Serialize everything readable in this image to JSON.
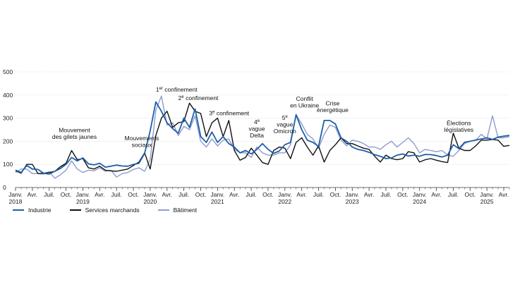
{
  "chart_data": {
    "type": "line",
    "ylim": [
      0,
      500
    ],
    "yticks": [
      0,
      100,
      200,
      300,
      400,
      500
    ],
    "x_start_index": 0,
    "x_end_index": 88,
    "x_ticks": [
      {
        "i": 0,
        "label": "Janv.",
        "year": "2018"
      },
      {
        "i": 3,
        "label": "Avr."
      },
      {
        "i": 6,
        "label": "Juil."
      },
      {
        "i": 9,
        "label": "Oct."
      },
      {
        "i": 12,
        "label": "Janv.",
        "year": "2019"
      },
      {
        "i": 15,
        "label": "Avr."
      },
      {
        "i": 18,
        "label": "Juil."
      },
      {
        "i": 21,
        "label": "Oct."
      },
      {
        "i": 24,
        "label": "Janv.",
        "year": "2020"
      },
      {
        "i": 27,
        "label": "Avr."
      },
      {
        "i": 30,
        "label": "Juil."
      },
      {
        "i": 33,
        "label": "Oct."
      },
      {
        "i": 36,
        "label": "Janv.",
        "year": "2021"
      },
      {
        "i": 39,
        "label": "Avr."
      },
      {
        "i": 42,
        "label": "Juil."
      },
      {
        "i": 45,
        "label": "Oct."
      },
      {
        "i": 48,
        "label": "Janv.",
        "year": "2022"
      },
      {
        "i": 51,
        "label": "Avr."
      },
      {
        "i": 54,
        "label": "Juil."
      },
      {
        "i": 57,
        "label": "Oct."
      },
      {
        "i": 60,
        "label": "Janv.",
        "year": "2023"
      },
      {
        "i": 63,
        "label": "Avr."
      },
      {
        "i": 66,
        "label": "Juil."
      },
      {
        "i": 69,
        "label": "Oct."
      },
      {
        "i": 72,
        "label": "Janv.",
        "year": "2024"
      },
      {
        "i": 75,
        "label": "Avr."
      },
      {
        "i": 78,
        "label": "Juil."
      },
      {
        "i": 81,
        "label": "Oct."
      },
      {
        "i": 84,
        "label": "Janv.",
        "year": "2025"
      },
      {
        "i": 87,
        "label": "Avr."
      }
    ],
    "series": [
      {
        "name": "Industrie",
        "color": "#1f5fa8",
        "width": 1.8,
        "values": [
          75,
          65,
          95,
          80,
          78,
          62,
          58,
          70,
          82,
          100,
          130,
          115,
          128,
          102,
          98,
          105,
          88,
          92,
          97,
          93,
          92,
          100,
          105,
          148,
          245,
          370,
          330,
          280,
          255,
          235,
          300,
          260,
          340,
          220,
          195,
          240,
          195,
          220,
          190,
          175,
          150,
          160,
          145,
          165,
          190,
          165,
          148,
          158,
          185,
          195,
          315,
          250,
          205,
          195,
          178,
          290,
          290,
          275,
          215,
          200,
          175,
          165,
          160,
          152,
          142,
          135,
          125,
          128,
          140,
          145,
          136,
          140,
          135,
          143,
          142,
          138,
          132,
          140,
          185,
          168,
          195,
          200,
          205,
          210,
          215,
          208,
          218,
          222,
          225
        ]
      },
      {
        "name": "Services marchands",
        "color": "#111111",
        "width": 1.4,
        "values": [
          72,
          62,
          100,
          100,
          60,
          62,
          65,
          70,
          90,
          105,
          160,
          120,
          125,
          85,
          80,
          92,
          75,
          72,
          70,
          75,
          80,
          95,
          110,
          150,
          80,
          225,
          300,
          330,
          260,
          280,
          285,
          365,
          330,
          320,
          220,
          280,
          300,
          220,
          290,
          160,
          118,
          130,
          170,
          140,
          108,
          100,
          160,
          175,
          170,
          125,
          195,
          215,
          175,
          140,
          180,
          110,
          160,
          185,
          215,
          190,
          190,
          180,
          170,
          165,
          135,
          110,
          140,
          125,
          120,
          125,
          155,
          150,
          110,
          120,
          125,
          118,
          112,
          108,
          235,
          170,
          160,
          160,
          180,
          205,
          205,
          208,
          205,
          178,
          182
        ]
      },
      {
        "name": "Bâtiment",
        "color": "#8c9ccf",
        "width": 1.4,
        "values": [
          65,
          80,
          80,
          60,
          60,
          58,
          68,
          40,
          55,
          75,
          115,
          80,
          65,
          75,
          72,
          85,
          70,
          75,
          45,
          60,
          65,
          78,
          85,
          70,
          120,
          335,
          395,
          270,
          280,
          225,
          265,
          250,
          310,
          200,
          175,
          210,
          180,
          205,
          210,
          165,
          150,
          150,
          130,
          175,
          150,
          140,
          140,
          150,
          150,
          185,
          315,
          275,
          230,
          210,
          170,
          230,
          270,
          260,
          205,
          180,
          205,
          200,
          190,
          175,
          175,
          165,
          185,
          200,
          175,
          195,
          215,
          190,
          150,
          165,
          160,
          155,
          160,
          140,
          135,
          160,
          190,
          200,
          205,
          230,
          210,
          310,
          215,
          215,
          220
        ]
      }
    ],
    "annotations": [
      {
        "lines": [
          "Mouvement",
          "des gilets jaunes"
        ],
        "i": 10.5,
        "y": 240,
        "anchor": "middle"
      },
      {
        "lines": [
          "Mouvements",
          "sociaux"
        ],
        "i": 22.5,
        "y": 205,
        "anchor": "middle"
      },
      {
        "lines": [
          "1<sup>er</sup> confinement"
        ],
        "i": 25,
        "y": 415,
        "anchor": "start",
        "sup": "er",
        "base": "1",
        "rest": " confinement"
      },
      {
        "lines": [
          "2<sup>e</sup> confinement"
        ],
        "i": 29,
        "y": 378,
        "anchor": "start",
        "sup": "e",
        "base": "2",
        "rest": " confinement"
      },
      {
        "lines": [
          "3<sup>e</sup> confinement"
        ],
        "i": 34.5,
        "y": 312,
        "anchor": "start",
        "sup": "e",
        "base": "3",
        "rest": " confinement"
      },
      {
        "lines": [
          "4<sup>e</sup>",
          "vague",
          "Delta"
        ],
        "i": 43,
        "y": 275,
        "anchor": "middle",
        "sup": "e",
        "base": "4"
      },
      {
        "lines": [
          "5<sup>e</sup>",
          "vague",
          "Omicron"
        ],
        "i": 48,
        "y": 293,
        "anchor": "middle",
        "sup": "e",
        "base": "5"
      },
      {
        "lines": [
          "Conflit",
          "en Ukraine"
        ],
        "i": 51.5,
        "y": 375,
        "anchor": "middle"
      },
      {
        "lines": [
          "Crise",
          "énergétique"
        ],
        "i": 56.5,
        "y": 355,
        "anchor": "middle"
      },
      {
        "lines": [
          "Élections",
          "législatives"
        ],
        "i": 79,
        "y": 270,
        "anchor": "middle"
      }
    ]
  }
}
